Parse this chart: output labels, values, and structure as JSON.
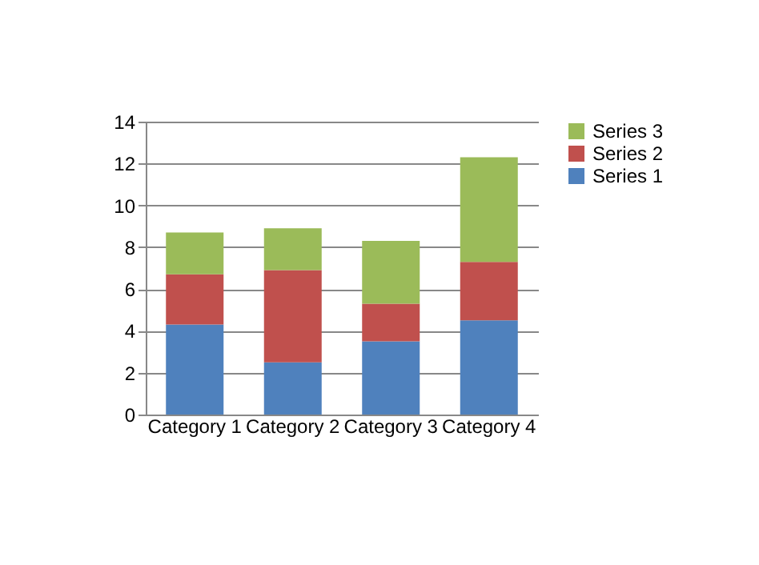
{
  "chart_data": {
    "type": "bar",
    "stacked": true,
    "categories": [
      "Category 1",
      "Category 2",
      "Category 3",
      "Category 4"
    ],
    "series": [
      {
        "name": "Series 1",
        "color": "#4f81bd",
        "values": [
          4.3,
          2.5,
          3.5,
          4.5
        ]
      },
      {
        "name": "Series 2",
        "color": "#c0504d",
        "values": [
          2.4,
          4.4,
          1.8,
          2.8
        ]
      },
      {
        "name": "Series 3",
        "color": "#9bbb59",
        "values": [
          2,
          2,
          3,
          5
        ]
      }
    ],
    "ylim": [
      0,
      14
    ],
    "yticks": [
      0,
      2,
      4,
      6,
      8,
      10,
      12,
      14
    ],
    "grid": "y",
    "legend": "right"
  }
}
